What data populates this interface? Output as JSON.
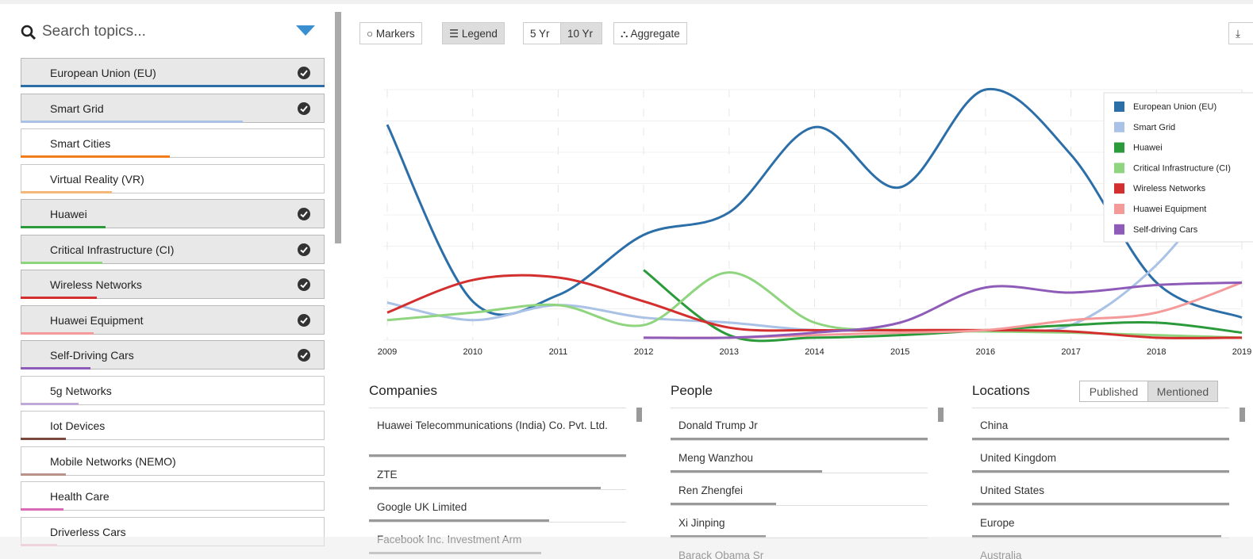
{
  "sidebar": {
    "search_placeholder": "Search topics...",
    "topics": [
      {
        "label": "European Union (EU)",
        "checked": true,
        "color": "#2c6ea8",
        "weight": 100
      },
      {
        "label": "Smart Grid",
        "checked": true,
        "color": "#a9c2e6",
        "weight": 73
      },
      {
        "label": "Smart Cities",
        "checked": false,
        "color": "#f07e1f",
        "weight": 49
      },
      {
        "label": "Virtual Reality (VR)",
        "checked": false,
        "color": "#f5b77a",
        "weight": 30
      },
      {
        "label": "Huawei",
        "checked": true,
        "color": "#2a9a3a",
        "weight": 28
      },
      {
        "label": "Critical Infrastructure (CI)",
        "checked": true,
        "color": "#8fd47e",
        "weight": 27
      },
      {
        "label": "Wireless Networks",
        "checked": true,
        "color": "#d32f2f",
        "weight": 25
      },
      {
        "label": "Huawei Equipment",
        "checked": true,
        "color": "#f49a9a",
        "weight": 24
      },
      {
        "label": "Self-Driving Cars",
        "checked": true,
        "color": "#8e5cb8",
        "weight": 23
      },
      {
        "label": "5g Networks",
        "checked": false,
        "color": "#c0a8d8",
        "weight": 19
      },
      {
        "label": "Iot Devices",
        "checked": false,
        "color": "#7b4a3e",
        "weight": 15
      },
      {
        "label": "Mobile Networks (NEMO)",
        "checked": false,
        "color": "#b9928a",
        "weight": 15
      },
      {
        "label": "Health Care",
        "checked": false,
        "color": "#d96bb5",
        "weight": 14
      },
      {
        "label": "Driverless Cars",
        "checked": false,
        "color": "#f2b6ce",
        "weight": 12
      }
    ]
  },
  "toolbar": {
    "markers": "Markers",
    "legend": "Legend",
    "five_yr": "5 Yr",
    "ten_yr": "10 Yr",
    "aggregate": "Aggregate"
  },
  "chart_data": {
    "type": "line",
    "x": [
      2009,
      2010,
      2011,
      2012,
      2013,
      2014,
      2015,
      2016,
      2017,
      2018,
      2019
    ],
    "xlim": [
      2009,
      2019
    ],
    "xticks": [
      2009,
      2010,
      2011,
      2012,
      2013,
      2014,
      2015,
      2016,
      2017,
      2018,
      2019
    ],
    "ylim": [
      0,
      100
    ],
    "grid": true,
    "legend": "top-right",
    "series": [
      {
        "name": "European Union (EU)",
        "color": "#2c6ea8",
        "values": [
          86,
          15.5,
          18,
          42,
          51,
          85,
          61,
          100,
          74,
          23,
          9
        ]
      },
      {
        "name": "Smart Grid",
        "color": "#a9c2e6",
        "values": [
          15,
          8,
          14,
          9,
          7,
          4,
          4,
          4,
          6,
          30,
          72
        ]
      },
      {
        "name": "Huawei",
        "color": "#2a9a3a",
        "values": [
          null,
          null,
          null,
          28,
          2,
          1,
          2,
          4,
          6,
          7,
          3
        ]
      },
      {
        "name": "Critical Infrastructure (CI)",
        "color": "#8fd47e",
        "values": [
          8,
          11,
          14,
          6,
          27,
          7,
          4,
          3.5,
          3,
          2,
          1
        ]
      },
      {
        "name": "Wireless Networks",
        "color": "#d32f2f",
        "values": [
          11,
          24,
          25,
          15.5,
          5,
          4,
          4,
          4,
          3.5,
          1,
          1
        ]
      },
      {
        "name": "Huawei Equipment",
        "color": "#f49a9a",
        "values": [
          null,
          null,
          null,
          1,
          1,
          2,
          3,
          4,
          8,
          11,
          23
        ]
      },
      {
        "name": "Self-driving Cars",
        "color": "#8e5cb8",
        "values": [
          null,
          null,
          null,
          1,
          1,
          3,
          7,
          21,
          19,
          22,
          23
        ]
      }
    ]
  },
  "panels": [
    {
      "title": "Companies",
      "items": [
        {
          "label": "Huawei Telecommunications (India) Co. Pvt. Ltd.",
          "weight": 100
        },
        {
          "label": "ZTE",
          "weight": 90
        },
        {
          "label": "Google UK Limited",
          "weight": 70
        },
        {
          "label": "Facebook Inc. Investment Arm",
          "weight": 67
        }
      ]
    },
    {
      "title": "People",
      "items": [
        {
          "label": "Donald Trump Jr",
          "weight": 100
        },
        {
          "label": "Meng Wanzhou",
          "weight": 59
        },
        {
          "label": "Ren Zhengfei",
          "weight": 41
        },
        {
          "label": "Xi Jinping",
          "weight": 37
        },
        {
          "label": "Barack Obama Sr",
          "weight": 30
        }
      ]
    },
    {
      "title": "Locations",
      "tabs": [
        "Published",
        "Mentioned"
      ],
      "items": [
        {
          "label": "China",
          "weight": 100
        },
        {
          "label": "United Kingdom",
          "weight": 100
        },
        {
          "label": "United States",
          "weight": 100
        },
        {
          "label": "Europe",
          "weight": 97
        },
        {
          "label": "Australia",
          "weight": 90
        }
      ]
    }
  ]
}
